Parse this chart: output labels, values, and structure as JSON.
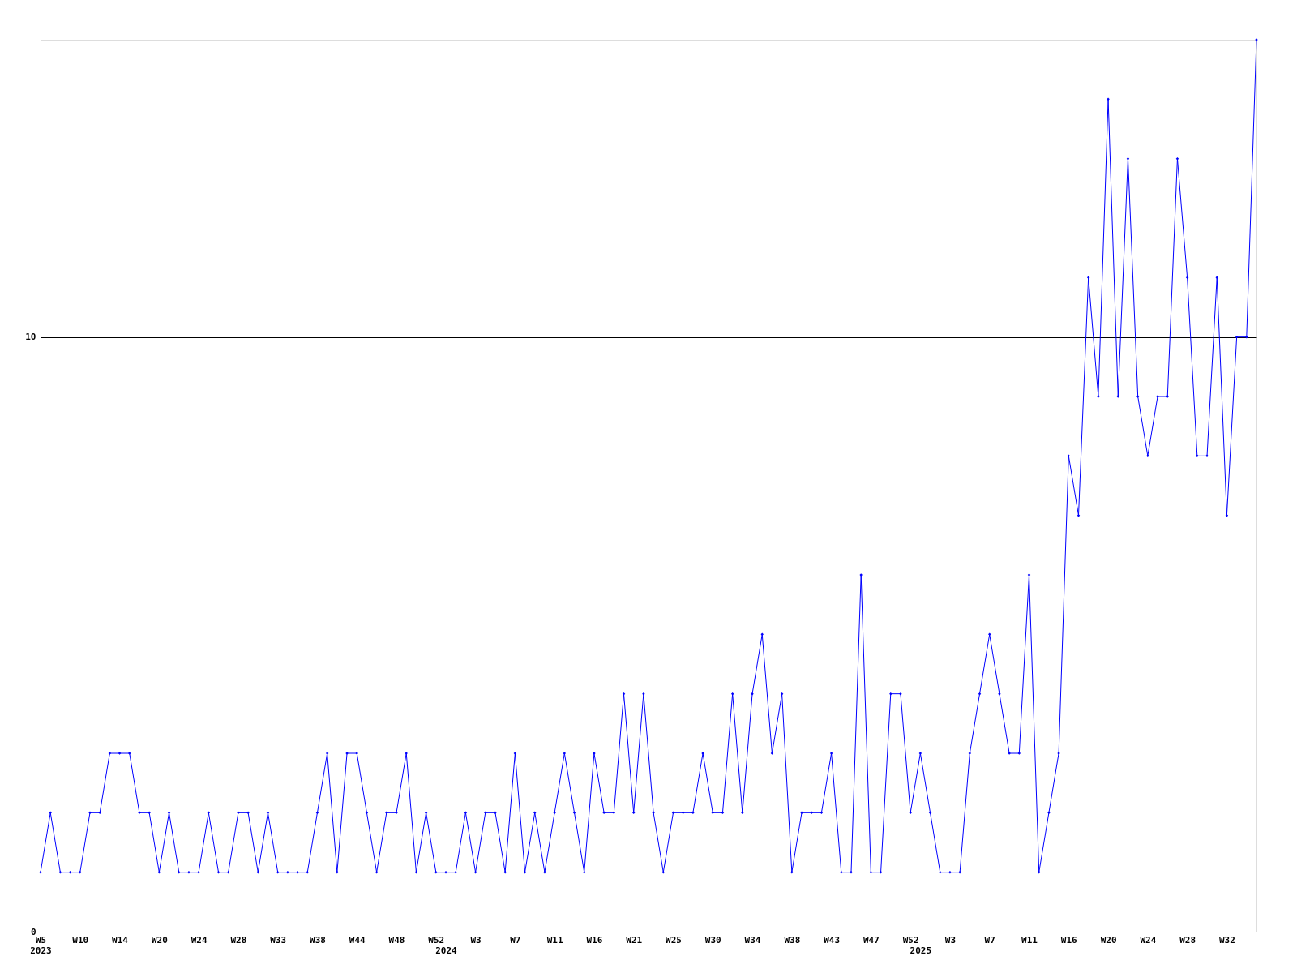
{
  "chart_data": {
    "type": "line",
    "categories": [
      "W5\n2023",
      null,
      null,
      null,
      "W10",
      null,
      null,
      null,
      "W14",
      null,
      null,
      null,
      "W20",
      null,
      null,
      null,
      "W24",
      null,
      null,
      null,
      "W28",
      null,
      null,
      null,
      "W33",
      null,
      null,
      null,
      "W38",
      null,
      null,
      null,
      "W44",
      null,
      null,
      null,
      "W48",
      null,
      null,
      null,
      "W52",
      "\n2024",
      null,
      null,
      "W3",
      null,
      null,
      null,
      "W7",
      null,
      null,
      null,
      "W11",
      null,
      null,
      null,
      "W16",
      null,
      null,
      null,
      "W21",
      null,
      null,
      null,
      "W25",
      null,
      null,
      null,
      "W30",
      null,
      null,
      null,
      "W34",
      null,
      null,
      null,
      "W38",
      null,
      null,
      null,
      "W43",
      null,
      null,
      null,
      "W47",
      null,
      null,
      null,
      "W52",
      "\n2025",
      null,
      null,
      "W3",
      null,
      null,
      null,
      "W7",
      null,
      null,
      null,
      "W11",
      null,
      null,
      null,
      "W16",
      null,
      null,
      null,
      "W20",
      null,
      null,
      null,
      "W24",
      null,
      null,
      null,
      "W28",
      null,
      null,
      null,
      "W32",
      null,
      null,
      null
    ],
    "series": [
      {
        "color": "#0000ff",
        "values": [
          1,
          2,
          1,
          1,
          1,
          2,
          2,
          3,
          3,
          3,
          2,
          2,
          1,
          2,
          1,
          1,
          1,
          2,
          1,
          1,
          2,
          2,
          1,
          2,
          1,
          1,
          1,
          1,
          2,
          3,
          1,
          3,
          3,
          2,
          1,
          2,
          2,
          3,
          1,
          2,
          1,
          1,
          1,
          2,
          1,
          2,
          2,
          1,
          3,
          1,
          2,
          1,
          2,
          3,
          2,
          1,
          3,
          2,
          2,
          4,
          2,
          4,
          2,
          1,
          2,
          2,
          2,
          3,
          2,
          2,
          4,
          2,
          4,
          5,
          3,
          4,
          1,
          2,
          2,
          2,
          3,
          1,
          1,
          6,
          1,
          1,
          4,
          4,
          2,
          3,
          2,
          1,
          1,
          1,
          3,
          4,
          5,
          4,
          3,
          3,
          6,
          1,
          2,
          3,
          8,
          7,
          11,
          9,
          14,
          9,
          13,
          9,
          8,
          9,
          9,
          13,
          11,
          8,
          8,
          11,
          7,
          10,
          10,
          15
        ]
      }
    ],
    "ylim": [
      0,
      15
    ],
    "yticks": [
      0,
      10
    ],
    "grid": "y",
    "marker": "diamond",
    "line_style": "solid"
  }
}
